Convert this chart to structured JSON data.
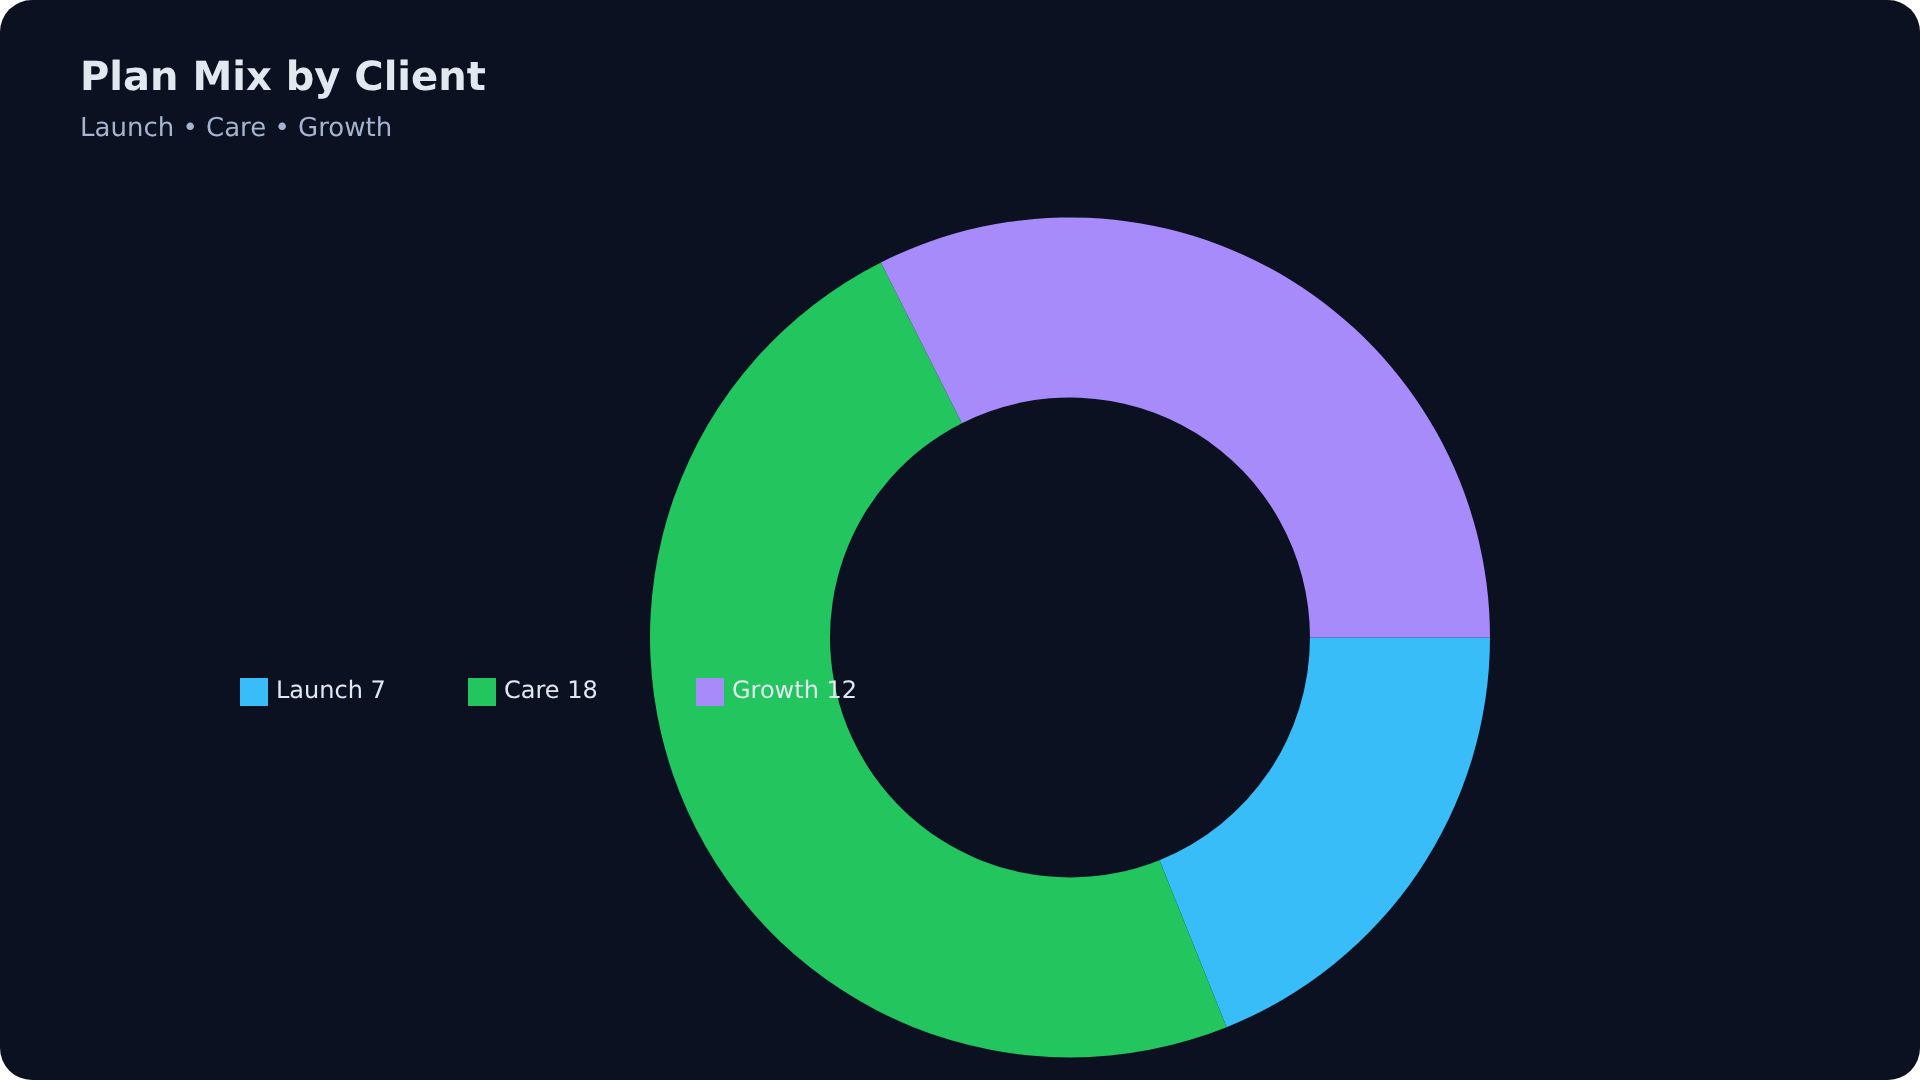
{
  "chart_data": {
    "type": "donut",
    "title": "Plan Mix by Client",
    "subtitle": "Launch • Care • Growth",
    "categories": [
      "Launch 7",
      "Care 18",
      "Growth 12"
    ],
    "values": [
      7,
      18,
      12
    ],
    "colors": [
      "#38bdf8",
      "#22c55e",
      "#a78bfa"
    ],
    "legend": "left"
  }
}
